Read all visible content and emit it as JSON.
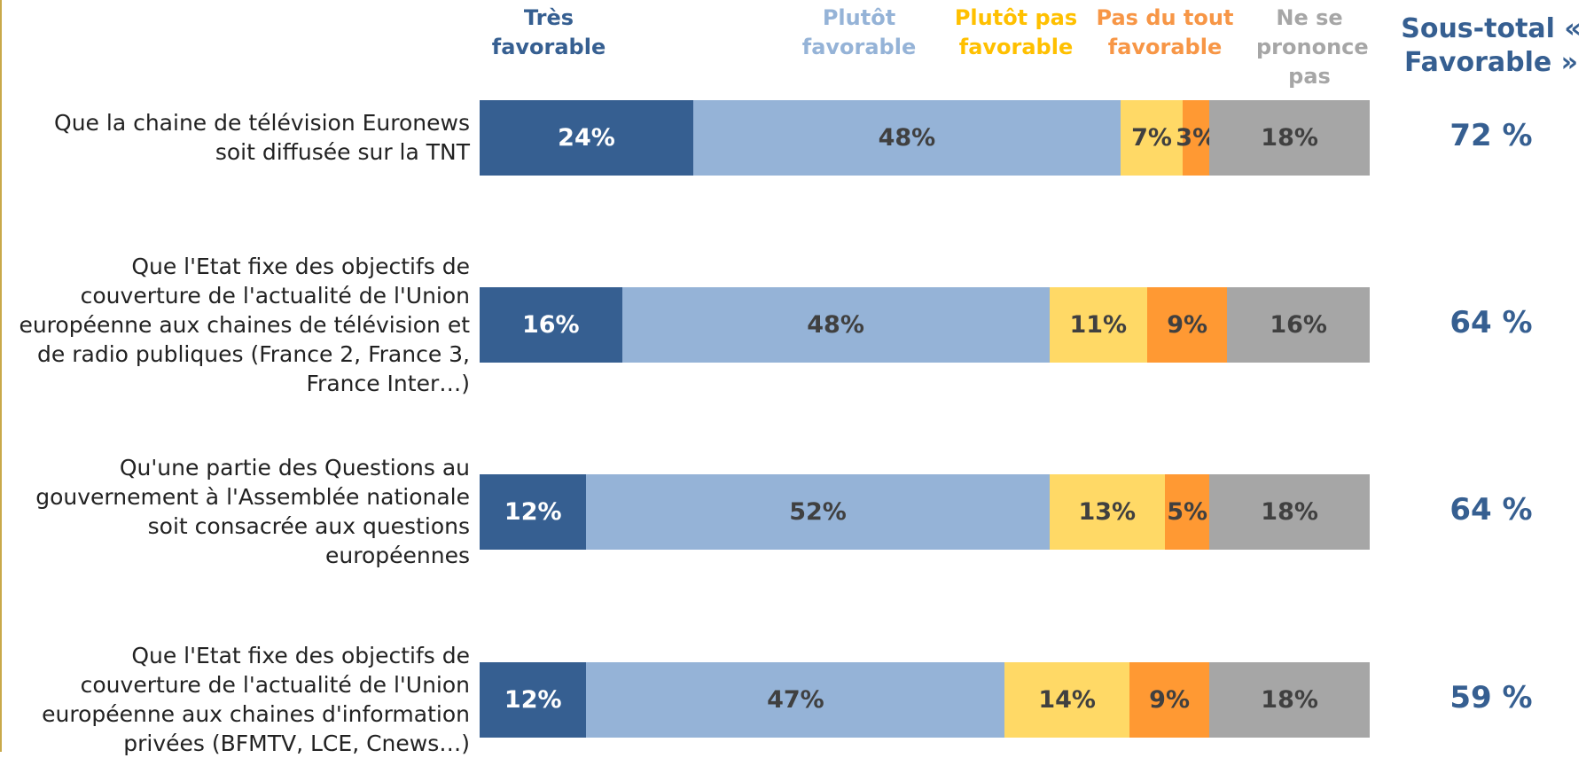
{
  "chart_data": {
    "type": "stacked-bar-horizontal",
    "categories": [
      "Que la chaine de télévision Euronews soit diffusée sur la TNT",
      "Que l'Etat fixe des objectifs de couverture de l'actualité de l'Union européenne aux chaines de télévision et de radio publiques (France 2, France 3, France Inter…)",
      "Qu'une partie des Questions au gouvernement à l'Assemblée nationale soit consacrée aux questions européennes",
      "Que l'Etat fixe des objectifs de couverture de l'actualité de l'Union européenne aux chaines d'information privées (BFMTV, LCE, Cnews…)"
    ],
    "series": [
      {
        "name": "Très favorable",
        "color": "#365f91",
        "label_color": "#ffffff",
        "name_color": "#365f91",
        "values": [
          24,
          16,
          12,
          12
        ],
        "value_labels": [
          "24%",
          "16%",
          "12%",
          "12%"
        ]
      },
      {
        "name": "Plutôt favorable",
        "color": "#95b3d7",
        "label_color": "#404040",
        "name_color": "#95b3d7",
        "values": [
          48,
          48,
          52,
          47
        ],
        "value_labels": [
          "48%",
          "48%",
          "52%",
          "47%"
        ]
      },
      {
        "name": "Plutôt pas favorable",
        "color": "#ffd966",
        "label_color": "#404040",
        "name_color": "#ffc000",
        "values": [
          7,
          11,
          13,
          14
        ],
        "value_labels": [
          "7%",
          "11%",
          "13%",
          "14%"
        ]
      },
      {
        "name": "Pas du tout favorable",
        "color": "#ff9933",
        "label_color": "#404040",
        "name_color": "#f79646",
        "values": [
          3,
          9,
          5,
          9
        ],
        "value_labels": [
          "3%",
          "9%",
          "5%",
          "9%"
        ]
      },
      {
        "name": "Ne se prononce pas",
        "color": "#a6a6a6",
        "label_color": "#404040",
        "name_color": "#a6a6a6",
        "values": [
          18,
          16,
          18,
          18
        ],
        "value_labels": [
          "18%",
          "16%",
          "18%",
          "18%"
        ]
      }
    ],
    "subtotal": {
      "title": "Sous-total « Favorable »",
      "values": [
        72,
        64,
        64,
        59
      ],
      "value_labels": [
        "72 %",
        "64 %",
        "64 %",
        "59 %"
      ]
    }
  }
}
